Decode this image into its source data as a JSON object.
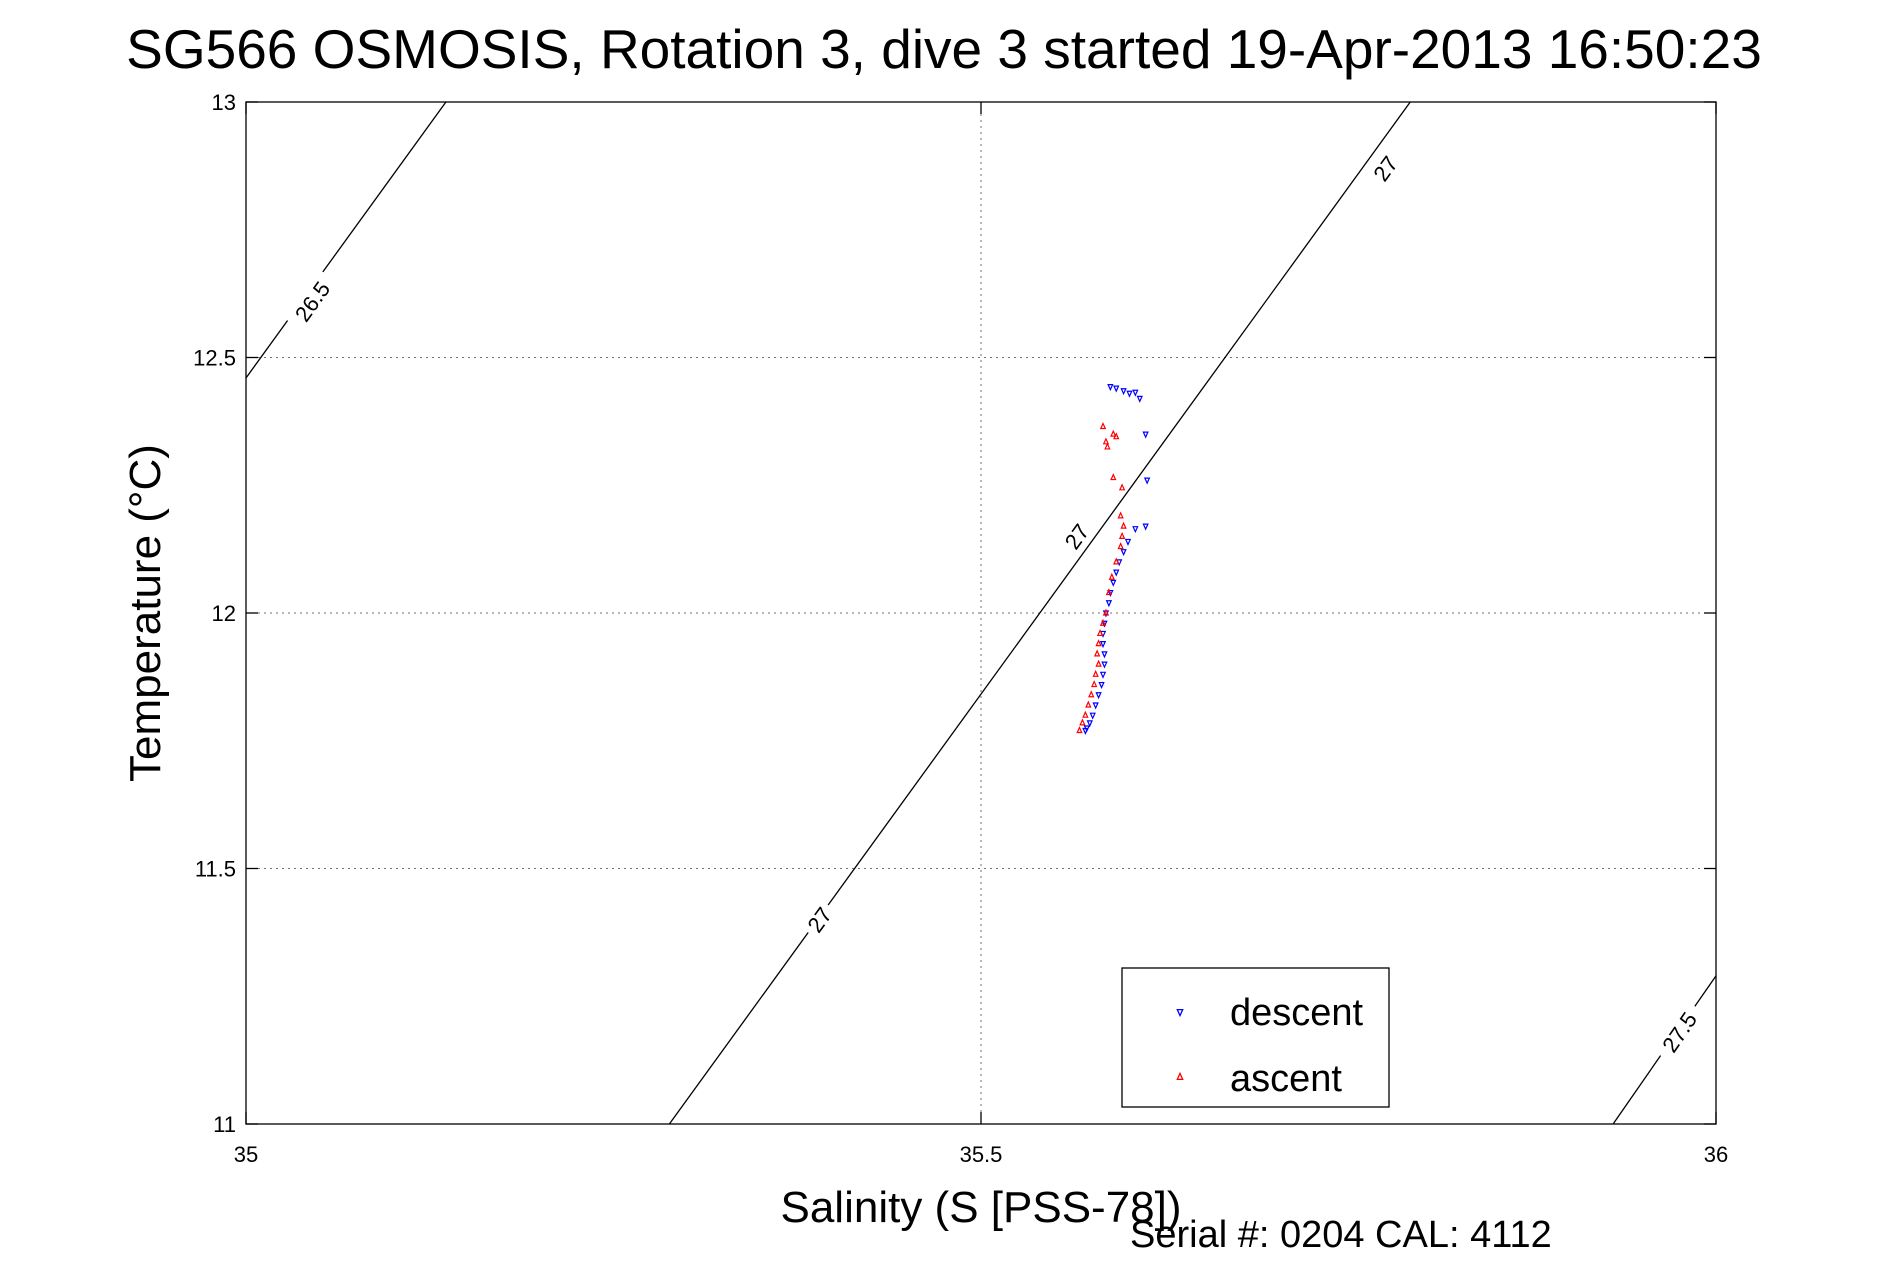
{
  "chart_data": {
    "type": "scatter",
    "title": "SG566 OSMOSIS, Rotation 3, dive 3 started 19-Apr-2013 16:50:23",
    "xlabel": "Salinity (S [PSS-78])",
    "ylabel": "Temperature (°C)",
    "xlim": [
      35,
      36
    ],
    "ylim": [
      11,
      13
    ],
    "grid": true,
    "legend_position": "bottom-right",
    "x_ticks": [
      35,
      35.5,
      36
    ],
    "x_tick_labels": [
      "35",
      "35.5",
      "36"
    ],
    "y_ticks": [
      11,
      11.5,
      12,
      12.5,
      13
    ],
    "y_tick_labels": [
      "11",
      "11.5",
      "12",
      "12.5",
      "13"
    ],
    "density_contours": [
      {
        "label": "26.5",
        "points": [
          [
            35.0,
            12.46
          ],
          [
            35.136,
            13.0
          ]
        ],
        "label_at": [
          35.045,
          12.61
        ]
      },
      {
        "label": "27",
        "points": [
          [
            35.288,
            11.0
          ],
          [
            35.792,
            13.0
          ]
        ],
        "labels_at": [
          [
            35.775,
            12.87
          ],
          [
            35.565,
            12.15
          ],
          [
            35.39,
            11.4
          ]
        ]
      },
      {
        "label": "27.5",
        "points": [
          [
            35.93,
            11.0
          ],
          [
            36.0,
            11.29
          ]
        ],
        "label_at": [
          35.975,
          11.18
        ]
      }
    ],
    "series": [
      {
        "name": "descent",
        "color": "#0000ff",
        "marker": "triangle-down",
        "points": [
          [
            35.588,
            12.443
          ],
          [
            35.592,
            12.44
          ],
          [
            35.597,
            12.435
          ],
          [
            35.601,
            12.43
          ],
          [
            35.605,
            12.432
          ],
          [
            35.608,
            12.42
          ],
          [
            35.612,
            12.35
          ],
          [
            35.613,
            12.26
          ],
          [
            35.612,
            12.17
          ],
          [
            35.605,
            12.165
          ],
          [
            35.6,
            12.14
          ],
          [
            35.597,
            12.12
          ],
          [
            35.594,
            12.1
          ],
          [
            35.592,
            12.08
          ],
          [
            35.59,
            12.06
          ],
          [
            35.588,
            12.04
          ],
          [
            35.587,
            12.02
          ],
          [
            35.585,
            12.0
          ],
          [
            35.584,
            11.98
          ],
          [
            35.583,
            11.96
          ],
          [
            35.583,
            11.94
          ],
          [
            35.584,
            11.92
          ],
          [
            35.584,
            11.9
          ],
          [
            35.583,
            11.88
          ],
          [
            35.582,
            11.86
          ],
          [
            35.58,
            11.84
          ],
          [
            35.578,
            11.82
          ],
          [
            35.576,
            11.8
          ],
          [
            35.574,
            11.785
          ],
          [
            35.572,
            11.775
          ],
          [
            35.571,
            11.77
          ]
        ]
      },
      {
        "name": "ascent",
        "color": "#ff0000",
        "marker": "triangle-up",
        "points": [
          [
            35.583,
            12.365
          ],
          [
            35.59,
            12.35
          ],
          [
            35.592,
            12.345
          ],
          [
            35.585,
            12.335
          ],
          [
            35.586,
            12.325
          ],
          [
            35.59,
            12.265
          ],
          [
            35.596,
            12.245
          ],
          [
            35.595,
            12.19
          ],
          [
            35.597,
            12.17
          ],
          [
            35.596,
            12.15
          ],
          [
            35.595,
            12.13
          ],
          [
            35.592,
            12.1
          ],
          [
            35.589,
            12.07
          ],
          [
            35.587,
            12.04
          ],
          [
            35.585,
            12.0
          ],
          [
            35.583,
            11.98
          ],
          [
            35.581,
            11.96
          ],
          [
            35.58,
            11.94
          ],
          [
            35.579,
            11.92
          ],
          [
            35.58,
            11.9
          ],
          [
            35.578,
            11.88
          ],
          [
            35.577,
            11.86
          ],
          [
            35.575,
            11.84
          ],
          [
            35.573,
            11.82
          ],
          [
            35.571,
            11.8
          ],
          [
            35.569,
            11.785
          ],
          [
            35.567,
            11.77
          ]
        ]
      }
    ],
    "footer": "Serial #: 0204  CAL: 4112"
  }
}
